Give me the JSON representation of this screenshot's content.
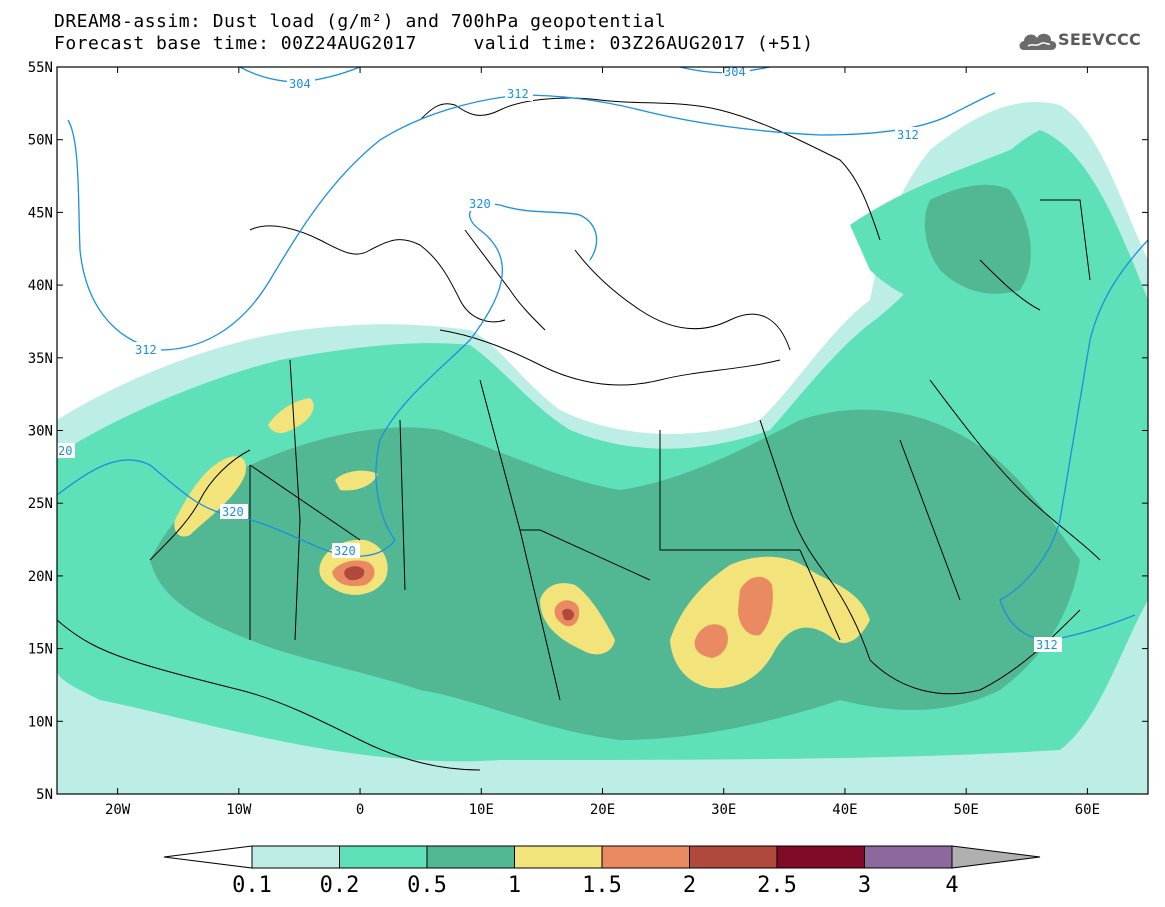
{
  "title": {
    "line1": "DREAM8-assim: Dust load (g/m²) and 700hPa geopotential",
    "line2": "Forecast base time: 00Z24AUG2017     valid time: 03Z26AUG2017 (+51)"
  },
  "logo": {
    "text": "SEEVCCC",
    "icon": "cloud-icon"
  },
  "map": {
    "lon_range": [
      -25,
      65
    ],
    "lat_range": [
      5,
      55
    ],
    "x_ticks": [
      "20W",
      "10W",
      "0",
      "10E",
      "20E",
      "30E",
      "40E",
      "50E",
      "60E"
    ],
    "y_ticks": [
      "55N",
      "50N",
      "45N",
      "40N",
      "35N",
      "30N",
      "25N",
      "20N",
      "15N",
      "10N",
      "5N"
    ],
    "contour_color": "#1a90e0",
    "contour_labels": [
      "304",
      "304",
      "312",
      "312",
      "312",
      "320",
      "320",
      "320",
      "312",
      "20",
      "312"
    ]
  },
  "colorbar": {
    "labels": [
      "0.1",
      "0.2",
      "0.5",
      "1",
      "1.5",
      "2",
      "2.5",
      "3",
      "4"
    ],
    "colors": [
      "#bdeee6",
      "#5ee0b8",
      "#52b893",
      "#f2e37a",
      "#ea8a62",
      "#b0483c",
      "#800a28",
      "#8c689c",
      "#b0b0b0"
    ]
  }
}
